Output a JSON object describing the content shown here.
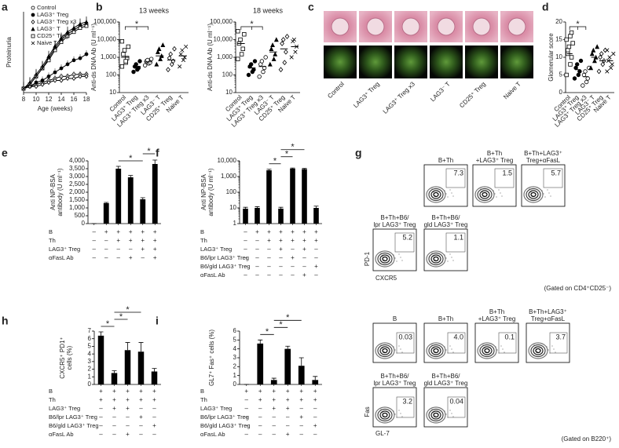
{
  "chart_data": [
    {
      "type": "line",
      "panel": "a",
      "y_label": "Proteinuria",
      "x_label": "Age (weeks)",
      "x": [
        8,
        9,
        10,
        11,
        12,
        13,
        14,
        15,
        16,
        17,
        18
      ],
      "xlim": [
        8,
        18
      ],
      "xticks": [
        8,
        10,
        12,
        14,
        16,
        18
      ],
      "ylim": [
        0,
        4
      ],
      "series": [
        {
          "name": "Control",
          "color": "#000000",
          "marker": "circle-open",
          "values": [
            0.2,
            0.3,
            0.4,
            0.5,
            0.6,
            0.7,
            0.8,
            0.8,
            0.9,
            0.9,
            0.9
          ]
        },
        {
          "name": "LAG3⁺ Treg",
          "color": "#000000",
          "marker": "circle-filled",
          "values": [
            0.2,
            0.3,
            0.5,
            0.6,
            0.8,
            1.0,
            1.2,
            1.4,
            1.6,
            1.7,
            1.9
          ]
        },
        {
          "name": "LAG3⁺ Treg x3",
          "color": "#000000",
          "marker": "diamond-open",
          "values": [
            0.2,
            0.3,
            0.3,
            0.4,
            0.5,
            0.6,
            0.6,
            0.7,
            0.7,
            0.8,
            0.8
          ]
        },
        {
          "name": "LAG3⁻ T",
          "color": "#000000",
          "marker": "triangle-filled",
          "values": [
            0.2,
            0.5,
            0.9,
            1.3,
            1.8,
            2.3,
            2.7,
            3.0,
            3.2,
            3.4,
            3.5
          ]
        },
        {
          "name": "CD25⁺ Treg",
          "color": "#000000",
          "marker": "square-open",
          "values": [
            0.2,
            0.4,
            0.8,
            1.2,
            1.6,
            2.1,
            2.5,
            2.8,
            3.0,
            3.2,
            3.3
          ]
        },
        {
          "name": "Naive T",
          "color": "#000000",
          "marker": "cross",
          "values": [
            0.2,
            0.4,
            0.8,
            1.2,
            1.7,
            2.2,
            2.6,
            2.9,
            3.1,
            3.3,
            3.4
          ]
        }
      ]
    },
    {
      "type": "strip",
      "panel": "b",
      "title": "13 weeks",
      "y_label": "Anti-ds DNA Ab (U ml⁻¹)",
      "log": true,
      "ylim": [
        10,
        100000
      ],
      "yticks": [
        10,
        100,
        {
          "value": 1000,
          "label": "1,000"
        },
        {
          "value": 10000,
          "label": "10,000"
        },
        {
          "value": 100000,
          "label": "100,000"
        }
      ],
      "categories": [
        "Control",
        "LAG3⁺ Treg",
        "LAG3⁺ Treg x3",
        "LAG3⁻ T",
        "CD25⁺ Treg",
        "Naive T"
      ],
      "markers": [
        "square-open",
        "circle-filled",
        "circle-open",
        "triangle-filled",
        "diamond-open",
        "cross"
      ],
      "points": [
        [
          300,
          500,
          900,
          1500,
          2500,
          4000,
          8000,
          600
        ],
        [
          150,
          200,
          250,
          300,
          400,
          600
        ],
        [
          350,
          450,
          500,
          600,
          700,
          800
        ],
        [
          400,
          800,
          1200,
          2000,
          3000,
          5000
        ],
        [
          200,
          400,
          600,
          900,
          1500,
          3000
        ],
        [
          300,
          700,
          1000,
          1500,
          2500,
          4000
        ]
      ],
      "means": [
        1000,
        300,
        550,
        1200,
        700,
        1200
      ],
      "annotations": [
        {
          "text": "*",
          "between": [
            0,
            2
          ]
        }
      ]
    },
    {
      "type": "strip",
      "title": "18 weeks",
      "y_label": "Anti-ds DNA Ab (U ml⁻¹)",
      "log": true,
      "ylim": [
        10,
        100000
      ],
      "yticks": [
        10,
        100,
        {
          "value": 1000,
          "label": "1,000"
        },
        {
          "value": 10000,
          "label": "10,000"
        },
        {
          "value": 100000,
          "label": "100,000"
        }
      ],
      "categories": [
        "Control",
        "LAG3⁺ Treg",
        "LAG3⁺ Treg x3",
        "LAG3⁻ T",
        "CD25⁺ Treg",
        "Naive T"
      ],
      "markers": [
        "square-open",
        "circle-filled",
        "circle-open",
        "triangle-filled",
        "diamond-open",
        "cross"
      ],
      "points": [
        [
          800,
          1500,
          3000,
          6000,
          10000,
          20000,
          30000
        ],
        [
          100,
          150,
          200,
          300,
          400,
          600
        ],
        [
          80,
          150,
          250,
          400,
          600,
          1000
        ],
        [
          400,
          800,
          1500,
          3000,
          5000,
          10000
        ],
        [
          200,
          500,
          2000,
          6000,
          10000,
          15000
        ],
        [
          1000,
          2000,
          4000,
          8000,
          10000
        ]
      ],
      "means": [
        6000,
        250,
        300,
        2000,
        3000,
        4000
      ],
      "annotations": [
        {
          "text": "*",
          "between": [
            0,
            2
          ]
        }
      ]
    },
    {
      "type": "strip",
      "panel": "d",
      "y_label": "Glomerular score",
      "ylim": [
        0,
        20
      ],
      "yticks": [
        0,
        5,
        10,
        15,
        20
      ],
      "categories": [
        "Control",
        "LAG3⁺ Treg",
        "LAG3⁺ Treg x3",
        "LAG3⁻ T",
        "CD25⁺ Treg",
        "Naive T"
      ],
      "markers": [
        "square-open",
        "circle-filled",
        "circle-open",
        "triangle-filled",
        "diamond-open",
        "cross"
      ],
      "points": [
        [
          5,
          8,
          10,
          12,
          13,
          14,
          15,
          16,
          17,
          11
        ],
        [
          4,
          5,
          6,
          7,
          8,
          9
        ],
        [
          2,
          3,
          4,
          5,
          6,
          7
        ],
        [
          7,
          9,
          10,
          11,
          12,
          13
        ],
        [
          6,
          8,
          9,
          10,
          11,
          12
        ],
        [
          6,
          7,
          8,
          9,
          10,
          11,
          12
        ]
      ],
      "means": [
        11,
        6.5,
        4.5,
        10,
        9,
        9
      ],
      "annotations": [
        {
          "text": "*",
          "between": [
            0,
            2
          ]
        }
      ]
    },
    {
      "type": "bar",
      "panel": "e",
      "y_label": [
        "Anti NP-BSA",
        "antibody (U ml⁻¹)"
      ],
      "color": "#000000",
      "ylim": [
        0,
        4000
      ],
      "yticks": [
        0,
        500,
        {
          "value": 1000,
          "label": "1,000"
        },
        {
          "value": 1500,
          "label": "1,500"
        },
        {
          "value": 2000,
          "label": "2,000"
        },
        {
          "value": 2500,
          "label": "2,500"
        },
        {
          "value": 3000,
          "label": "3,000"
        },
        {
          "value": 3500,
          "label": "3,500"
        },
        {
          "value": 4000,
          "label": "4,000"
        }
      ],
      "values": [
        0,
        1300,
        3500,
        2950,
        1550,
        3800
      ],
      "errors": [
        0,
        50,
        150,
        120,
        100,
        250
      ],
      "conditions": [
        {
          "label": "B",
          "signs": [
            "–",
            "+",
            "+",
            "+",
            "+",
            "+"
          ]
        },
        {
          "label": "Th",
          "signs": [
            "–",
            "–",
            "+",
            "+",
            "+",
            "+"
          ]
        },
        {
          "label": "LAG3⁺ Treg",
          "signs": [
            "–",
            "–",
            "–",
            "–",
            "+",
            "+"
          ]
        },
        {
          "label": "αFasL Ab",
          "signs": [
            "–",
            "–",
            "–",
            "+",
            "–",
            "+"
          ]
        }
      ],
      "annotations": [
        {
          "text": "*",
          "between": [
            2,
            4
          ]
        },
        {
          "text": "*",
          "between": [
            4,
            5
          ]
        }
      ]
    },
    {
      "type": "bar",
      "panel": "f",
      "y_label": [
        "Anti NP-BSA",
        "antibody (U ml⁻¹)"
      ],
      "color": "#000000",
      "log": true,
      "ylim": [
        1,
        10000
      ],
      "yticks": [
        1,
        10,
        100,
        {
          "value": 1000,
          "label": "1,000"
        },
        {
          "value": 10000,
          "label": "10,000"
        }
      ],
      "values": [
        9,
        10,
        2500,
        9,
        3200,
        3000,
        10
      ],
      "errors": [
        2,
        2,
        400,
        2,
        300,
        300,
        3
      ],
      "conditions": [
        {
          "label": "B",
          "signs": [
            "–",
            "+",
            "+",
            "+",
            "+",
            "+",
            "+"
          ]
        },
        {
          "label": "Th",
          "signs": [
            "–",
            "–",
            "+",
            "+",
            "+",
            "+",
            "+"
          ]
        },
        {
          "label": "LAG3⁺ Treg",
          "signs": [
            "–",
            "–",
            "–",
            "+",
            "–",
            "+",
            "–"
          ]
        },
        {
          "label": "B6/lpr LAG3⁺ Treg",
          "signs": [
            "–",
            "–",
            "–",
            "–",
            "+",
            "–",
            "–"
          ]
        },
        {
          "label": "B6/gld LAG3⁺ Treg",
          "signs": [
            "–",
            "–",
            "–",
            "–",
            "–",
            "–",
            "+"
          ]
        },
        {
          "label": "αFasL Ab",
          "signs": [
            "–",
            "–",
            "–",
            "–",
            "–",
            "+",
            "–"
          ]
        }
      ],
      "annotations": [
        {
          "text": "*",
          "between": [
            2,
            3
          ]
        },
        {
          "text": "*",
          "between": [
            3,
            4
          ]
        },
        {
          "text": "*",
          "between": [
            3,
            5
          ]
        }
      ]
    },
    {
      "type": "bar",
      "panel": "h",
      "y_label": [
        "CXCR5⁺ PD1⁺",
        "cells (%)"
      ],
      "color": "#000000",
      "ylim": [
        0,
        7
      ],
      "yticks": [
        0,
        1,
        2,
        3,
        4,
        5,
        6,
        7
      ],
      "values": [
        6.4,
        1.5,
        4.5,
        4.3,
        1.7
      ],
      "errors": [
        0.5,
        0.3,
        1.0,
        1.2,
        0.4
      ],
      "conditions": [
        {
          "label": "B",
          "signs": [
            "+",
            "+",
            "+",
            "+",
            "+"
          ]
        },
        {
          "label": "Th",
          "signs": [
            "+",
            "+",
            "+",
            "+",
            "+"
          ]
        },
        {
          "label": "LAG3⁺ Treg",
          "signs": [
            "–",
            "+",
            "+",
            "–",
            "–"
          ]
        },
        {
          "label": "B6/lpr LAG3⁺ Treg",
          "signs": [
            "–",
            "–",
            "–",
            "+",
            "–"
          ]
        },
        {
          "label": "B6/gld LAG3⁺ Treg",
          "signs": [
            "–",
            "–",
            "–",
            "–",
            "+"
          ]
        },
        {
          "label": "αFasL Ab",
          "signs": [
            "–",
            "–",
            "+",
            "–",
            "–"
          ]
        }
      ],
      "annotations": [
        {
          "text": "*",
          "between": [
            0,
            1
          ]
        },
        {
          "text": "*",
          "between": [
            1,
            2
          ]
        },
        {
          "text": "*",
          "between": [
            1,
            3
          ]
        }
      ]
    },
    {
      "type": "bar",
      "panel": "i",
      "y_label": "GL7⁺ Fas⁺ cells (%)",
      "color": "#000000",
      "ylim": [
        0,
        6
      ],
      "yticks": [
        0,
        1,
        2,
        3,
        4,
        5,
        6
      ],
      "values": [
        0,
        4.6,
        0.5,
        4.0,
        2.1,
        0.5
      ],
      "errors": [
        0,
        0.4,
        0.2,
        0.3,
        0.9,
        0.4
      ],
      "conditions": [
        {
          "label": "B",
          "signs": [
            "+",
            "+",
            "+",
            "+",
            "+",
            "+"
          ]
        },
        {
          "label": "Th",
          "signs": [
            "–",
            "+",
            "+",
            "+",
            "+",
            "+"
          ]
        },
        {
          "label": "LAG3⁺ Treg",
          "signs": [
            "–",
            "–",
            "+",
            "+",
            "–",
            "–"
          ]
        },
        {
          "label": "B6/lpr LAG3⁺ Treg",
          "signs": [
            "–",
            "–",
            "–",
            "–",
            "+",
            "–"
          ]
        },
        {
          "label": "B6/gld LAG3⁺ Treg",
          "signs": [
            "–",
            "–",
            "–",
            "–",
            "–",
            "+"
          ]
        },
        {
          "label": "αFasL Ab",
          "signs": [
            "–",
            "–",
            "–",
            "+",
            "–",
            "–"
          ]
        }
      ],
      "annotations": [
        {
          "text": "*",
          "between": [
            1,
            2
          ]
        },
        {
          "text": "*",
          "between": [
            2,
            3
          ]
        },
        {
          "text": "*",
          "between": [
            2,
            4
          ]
        }
      ]
    }
  ],
  "histology": {
    "panel": "c",
    "labels": [
      "Control",
      "LAG3⁺ Treg",
      "LAG3⁺ Treg x3",
      "LAG3⁻ T",
      "CD25⁺ Treg",
      "Naive T"
    ]
  },
  "flow": {
    "panel": "g",
    "groups": [
      {
        "y_axis": "PD-1",
        "x_axis": "CXCR5",
        "gate_note": "(Gated on CD4⁺CD25⁻)",
        "plots": [
          {
            "title": [
              "B+Th"
            ],
            "percent": "7.3"
          },
          {
            "title": [
              "B+Th",
              "+LAG3⁺ Treg"
            ],
            "percent": "1.5"
          },
          {
            "title": [
              "B+Th+LAG3⁺",
              "Treg+αFasL"
            ],
            "percent": "5.7"
          },
          {
            "title": [
              "B+Th+B6/",
              "lpr LAG3⁺ Treg"
            ],
            "percent": "5.2"
          },
          {
            "title": [
              "B+Th+B6/",
              "gld LAG3⁺ Treg"
            ],
            "percent": "1.1"
          }
        ]
      },
      {
        "y_axis": "Fas",
        "x_axis": "GL-7",
        "gate_note": "(Gated on B220⁺)",
        "plots": [
          {
            "title": [
              "B"
            ],
            "percent": "0.03"
          },
          {
            "title": [
              "B+Th"
            ],
            "percent": "4.0"
          },
          {
            "title": [
              "B+Th",
              "+LAG3⁺ Treg"
            ],
            "percent": "0.1"
          },
          {
            "title": [
              "B+Th+LAG3⁺",
              "Treg+αFasL"
            ],
            "percent": "3.7"
          },
          {
            "title": [
              "B+Th+B6/",
              "lpr LAG3⁺ Treg"
            ],
            "percent": "3.2"
          },
          {
            "title": [
              "B+Th+B6/",
              "gld LAG3⁺ Treg"
            ],
            "percent": "0.04"
          }
        ]
      }
    ]
  }
}
